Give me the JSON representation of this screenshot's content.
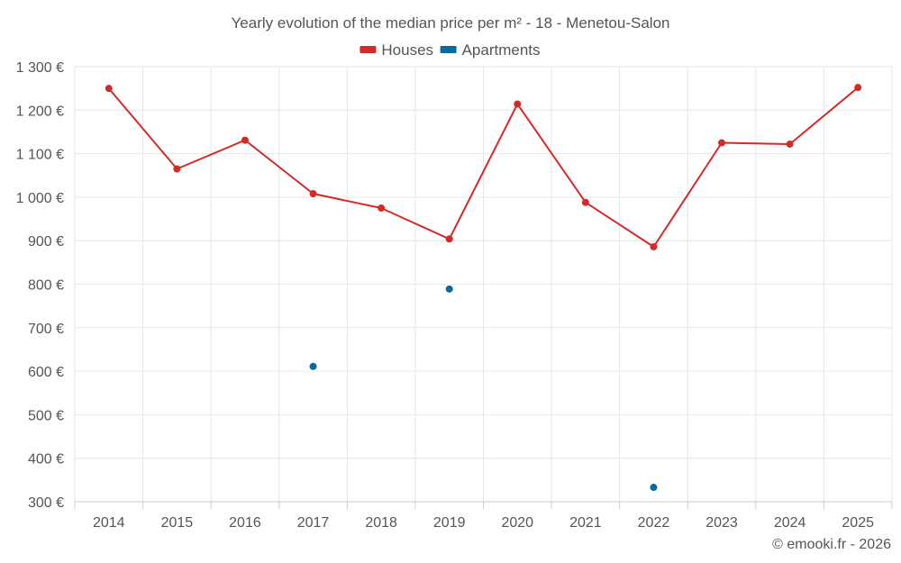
{
  "chart_data": {
    "type": "line",
    "title": "Yearly evolution of the median price per m² - 18 - Menetou-Salon",
    "categories": [
      "2014",
      "2015",
      "2016",
      "2017",
      "2018",
      "2019",
      "2020",
      "2021",
      "2022",
      "2023",
      "2024",
      "2025"
    ],
    "series": [
      {
        "name": "Houses",
        "color": "#d42a2a",
        "values": [
          1250,
          1065,
          1131,
          1008,
          975,
          904,
          1214,
          988,
          886,
          1125,
          1122,
          1252
        ]
      },
      {
        "name": "Apartments",
        "color": "#0a6a9e",
        "values": [
          null,
          null,
          null,
          611,
          null,
          789,
          null,
          null,
          333,
          null,
          null,
          null
        ]
      }
    ],
    "ylim": [
      300,
      1300
    ],
    "yticks": [
      300,
      400,
      500,
      600,
      700,
      800,
      900,
      1000,
      1100,
      1200,
      1300
    ],
    "ytick_labels": [
      "300 €",
      "400 €",
      "500 €",
      "600 €",
      "700 €",
      "800 €",
      "900 €",
      "1 000 €",
      "1 100 €",
      "1 200 €",
      "1 300 €"
    ],
    "xlabel": "",
    "ylabel": "",
    "grid": true,
    "legend_position": "top-center"
  },
  "credit": "© emooki.fr - 2026"
}
